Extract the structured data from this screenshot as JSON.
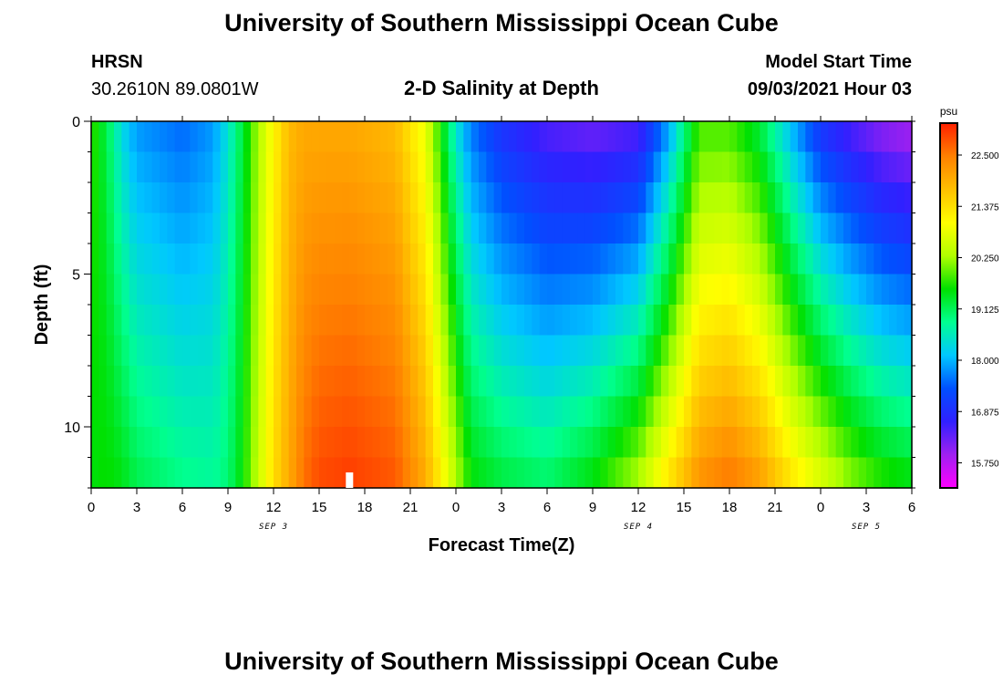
{
  "page": {
    "title_top": "University of Southern Mississippi Ocean Cube",
    "title_bottom": "University of Southern Mississippi Ocean Cube",
    "station_name": "HRSN",
    "station_coords": "30.2610N  89.0801W",
    "plot_title": "2-D Salinity at Depth",
    "model_label": "Model Start Time",
    "model_time": "09/03/2021 Hour 03"
  },
  "chart_data": {
    "type": "heatmap",
    "title": "2-D Salinity at Depth",
    "xlabel": "Forecast Time(Z)",
    "ylabel": "Depth (ft)",
    "ylim": [
      0,
      12
    ],
    "y_ticks": [
      0,
      5,
      10
    ],
    "x_start_hour": 0,
    "x_end_hour": 54,
    "x_tick_labels": [
      "0",
      "3",
      "6",
      "9",
      "12",
      "15",
      "18",
      "21",
      "0",
      "3",
      "6",
      "9",
      "12",
      "15",
      "18",
      "21",
      "0",
      "3",
      "6"
    ],
    "date_labels": [
      {
        "hour": 12,
        "text": "SEP 3"
      },
      {
        "hour": 36,
        "text": "SEP 4"
      },
      {
        "hour": 51,
        "text": "SEP 5"
      }
    ],
    "time_marker_hour": 17,
    "colorbar": {
      "unit": "psu",
      "min": 15.2,
      "max": 23.2,
      "tick_values": [
        15.75,
        16.875,
        18.0,
        19.125,
        20.25,
        21.375,
        22.5
      ],
      "tick_labels": [
        "15.750",
        "16.875",
        "18.000",
        "19.125",
        "20.250",
        "21.375",
        "22.500"
      ],
      "colors": [
        "#ff00ff",
        "#a020f0",
        "#3020ff",
        "#0050ff",
        "#00c8ff",
        "#00ff90",
        "#00e000",
        "#b0ff00",
        "#ffff00",
        "#ffc000",
        "#ff8000",
        "#ff2000"
      ]
    },
    "salinity_profile": {
      "hours": [
        0,
        1,
        2,
        3,
        6,
        8,
        9,
        10,
        11,
        12,
        13,
        14,
        15,
        17,
        20,
        22,
        23,
        24,
        25,
        27,
        30,
        33,
        36,
        38,
        40,
        42,
        44,
        46,
        48,
        50,
        52,
        54
      ],
      "surface_psu": [
        19.8,
        19.2,
        18.3,
        17.8,
        17.5,
        17.8,
        18.4,
        19.3,
        20.3,
        21.1,
        21.8,
        22.0,
        22.0,
        22.0,
        21.8,
        20.8,
        19.6,
        18.4,
        17.6,
        16.9,
        16.4,
        16.2,
        16.4,
        17.8,
        19.8,
        19.8,
        19.2,
        18.0,
        16.9,
        16.4,
        16.0,
        15.8
      ],
      "bottom_psu": [
        19.5,
        19.6,
        19.5,
        19.2,
        18.9,
        18.8,
        19.0,
        19.6,
        20.5,
        21.4,
        22.0,
        22.6,
        22.9,
        23.0,
        22.8,
        22.0,
        21.2,
        20.4,
        19.6,
        19.3,
        19.1,
        19.6,
        20.4,
        21.4,
        22.3,
        22.6,
        22.2,
        21.4,
        20.8,
        20.2,
        19.8,
        19.6
      ]
    }
  }
}
